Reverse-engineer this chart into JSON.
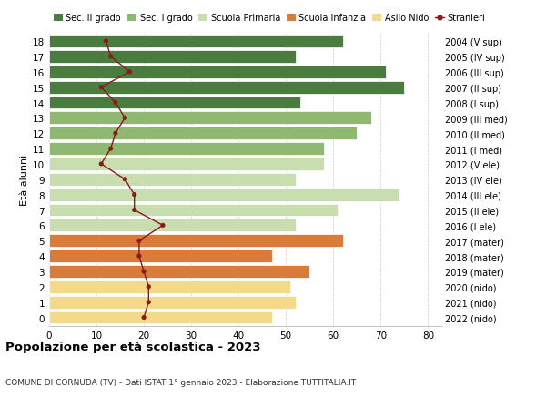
{
  "ages": [
    0,
    1,
    2,
    3,
    4,
    5,
    6,
    7,
    8,
    9,
    10,
    11,
    12,
    13,
    14,
    15,
    16,
    17,
    18
  ],
  "right_labels": [
    "2022 (nido)",
    "2021 (nido)",
    "2020 (nido)",
    "2019 (mater)",
    "2018 (mater)",
    "2017 (mater)",
    "2016 (I ele)",
    "2015 (II ele)",
    "2014 (III ele)",
    "2013 (IV ele)",
    "2012 (V ele)",
    "2011 (I med)",
    "2010 (II med)",
    "2009 (III med)",
    "2008 (I sup)",
    "2007 (II sup)",
    "2006 (III sup)",
    "2005 (IV sup)",
    "2004 (V sup)"
  ],
  "bar_values": [
    47,
    52,
    51,
    55,
    47,
    62,
    52,
    61,
    74,
    52,
    58,
    58,
    65,
    68,
    53,
    75,
    71,
    52,
    62
  ],
  "bar_colors": [
    "#f5d98b",
    "#f5d98b",
    "#f5d98b",
    "#d97b3a",
    "#d97b3a",
    "#d97b3a",
    "#c8ddb0",
    "#c8ddb0",
    "#c8ddb0",
    "#c8ddb0",
    "#c8ddb0",
    "#8fb870",
    "#8fb870",
    "#8fb870",
    "#4a7c3f",
    "#4a7c3f",
    "#4a7c3f",
    "#4a7c3f",
    "#4a7c3f"
  ],
  "stranieri_values": [
    20,
    21,
    21,
    20,
    19,
    19,
    24,
    18,
    18,
    16,
    11,
    13,
    14,
    16,
    14,
    11,
    17,
    13,
    12
  ],
  "xlim": [
    0,
    83
  ],
  "title": "Popolazione per età scolastica - 2023",
  "subtitle": "COMUNE DI CORNUDA (TV) - Dati ISTAT 1° gennaio 2023 - Elaborazione TUTTITALIA.IT",
  "ylabel_left": "Età alunni",
  "legend_labels": [
    "Sec. II grado",
    "Sec. I grado",
    "Scuola Primaria",
    "Scuola Infanzia",
    "Asilo Nido",
    "Stranieri"
  ],
  "legend_colors": [
    "#4a7c3f",
    "#8fb870",
    "#c8ddb0",
    "#d97b3a",
    "#f5d98b",
    "#8b1a1a"
  ],
  "bg_color": "#ffffff",
  "bar_height": 0.82,
  "xticks": [
    0,
    10,
    20,
    30,
    40,
    50,
    60,
    70,
    80
  ]
}
